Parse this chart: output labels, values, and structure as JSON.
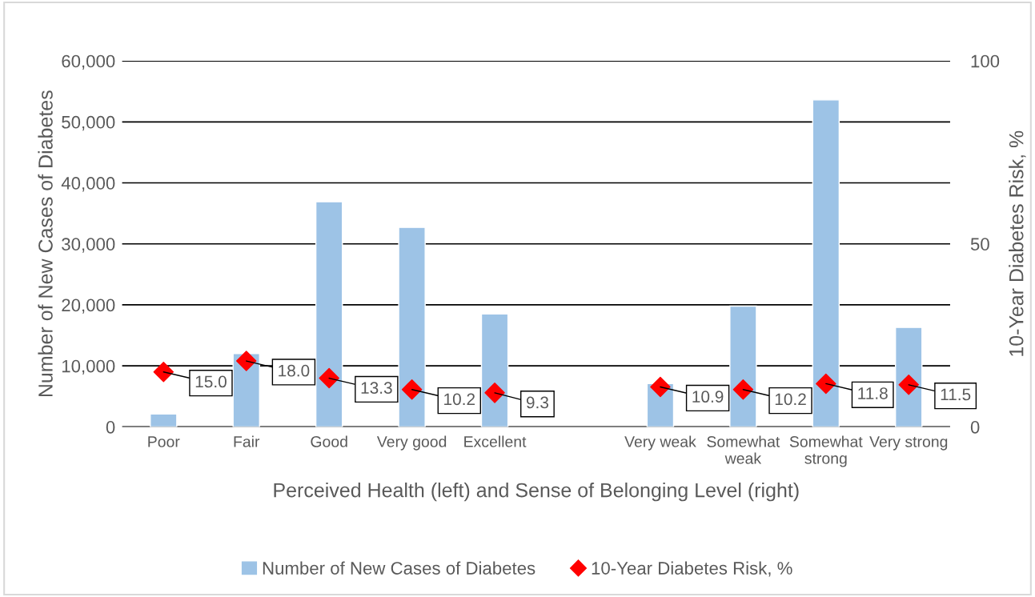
{
  "chart_data": {
    "type": "bar",
    "xlabel": "Perceived Health (left) and Sense of Belonging Level (right)",
    "ylabel": "Number of New Cases of Diabetes",
    "y2label": "10-Year Diabetes Risk, %",
    "categories": [
      "Poor",
      "Fair",
      "Good",
      "Very good",
      "Excellent",
      null,
      "Very weak",
      "Somewhat weak",
      "Somewhat strong",
      "Very strong"
    ],
    "series": [
      {
        "name": "Number of New Cases of Diabetes",
        "color": "#9dc3e6",
        "values": [
          2100,
          12000,
          36900,
          32700,
          18500,
          null,
          7100,
          19800,
          53600,
          16300
        ]
      },
      {
        "name": "10-Year Diabetes Risk, %",
        "type": "scatter",
        "axis": "y2",
        "color": "#ff0000",
        "marker": "diamond",
        "values": [
          15.0,
          18.0,
          13.3,
          10.2,
          9.3,
          null,
          10.9,
          10.2,
          11.8,
          11.5
        ],
        "value_labels": [
          "15.0",
          "18.0",
          "13.3",
          "10.2",
          "9.3",
          null,
          "10.9",
          "10.2",
          "11.8",
          "11.5"
        ]
      }
    ],
    "ylim": [
      0,
      60000
    ],
    "yticks": [
      {
        "value": 0,
        "label": "0"
      },
      {
        "value": 10000,
        "label": "10,000"
      },
      {
        "value": 20000,
        "label": "20,000"
      },
      {
        "value": 30000,
        "label": "30,000"
      },
      {
        "value": 40000,
        "label": "40,000"
      },
      {
        "value": 50000,
        "label": "50,000"
      },
      {
        "value": 60000,
        "label": "60,000"
      }
    ],
    "y2lim": [
      0,
      100
    ],
    "y2ticks": [
      0,
      50,
      100
    ],
    "grid": "y",
    "legend": "bottom"
  }
}
